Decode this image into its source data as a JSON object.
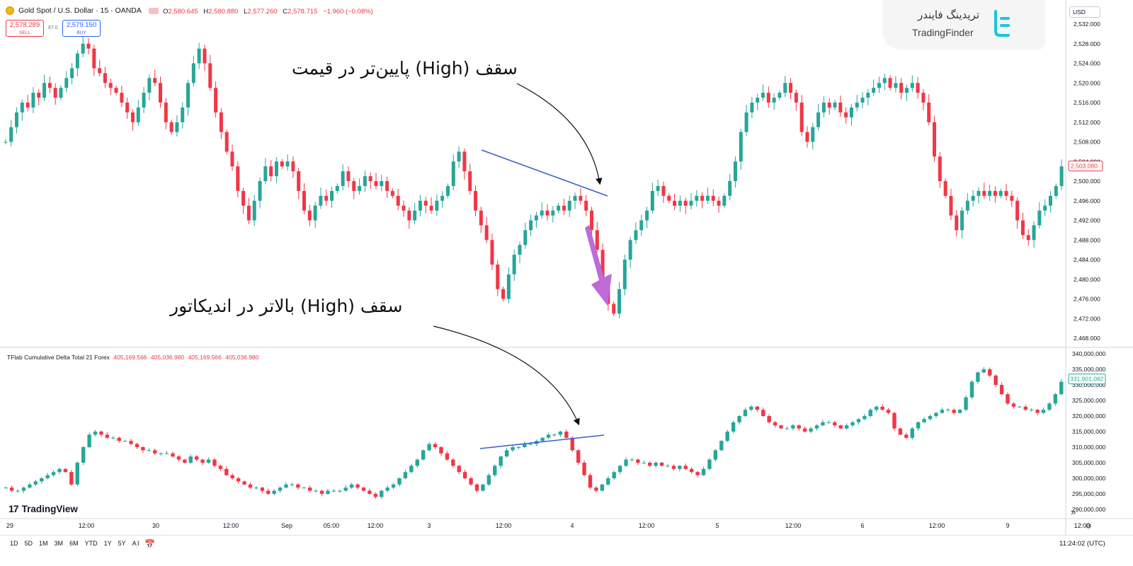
{
  "header": {
    "symbol": "Gold Spot / U.S. Dollar · 15 · OANDA",
    "ohlc": [
      {
        "k": "O",
        "v": "2,580.645"
      },
      {
        "k": "H",
        "v": "2,580.880"
      },
      {
        "k": "L",
        "v": "2,577.260"
      },
      {
        "k": "C",
        "v": "2,578.715"
      }
    ],
    "change": "−1.960 (−0.08%)"
  },
  "trade": {
    "sell_price": "2,578.289",
    "sell_label": "SELL",
    "spread": "87.0",
    "buy_price": "2,579.150",
    "buy_label": "BUY"
  },
  "currency": "USD",
  "price_axis": [
    "2,532.000",
    "2,528.000",
    "2,524.000",
    "2,520.000",
    "2,516.000",
    "2,512.000",
    "2,508.000",
    "2,504.000",
    "2,500.000",
    "2,496.000",
    "2,492.000",
    "2,488.000",
    "2,484.000",
    "2,480.000",
    "2,476.000",
    "2,472.000",
    "2,468.000"
  ],
  "last_price": "2,503.080",
  "indicator": {
    "title": "TFlab Cumulative Delta Total 21 Forex",
    "values": [
      "405,169.566",
      "405,036.980",
      "405,169.566",
      "405,036.980"
    ],
    "axis": [
      "340,000,000",
      "335,000,000",
      "330,000,000",
      "325,000,000",
      "320,000,000",
      "315,000,000",
      "310,000,000",
      "305,000,000",
      "300,000,000",
      "295,000,000",
      "290,000,000"
    ],
    "last_value": "331,901,082"
  },
  "annotations": {
    "top": "سقف (High) پایین‌تر در قیمت",
    "bottom": "سقف (High) بالاتر در اندیکاتور"
  },
  "logo": {
    "fa": "تریدینگ فایندر",
    "en": "TradingFinder"
  },
  "tv_brand": "TradingView",
  "time_axis": [
    "29",
    "12:00",
    "30",
    "12:00",
    "Sep",
    "05:00",
    "12:00",
    "3",
    "12:00",
    "4",
    "12:00",
    "5",
    "12:00",
    "6",
    "12:00",
    "9",
    "12:00"
  ],
  "ranges": [
    "1D",
    "5D",
    "1M",
    "3M",
    "6M",
    "YTD",
    "1Y",
    "5Y",
    "All"
  ],
  "clock": "11:24:02 (UTC)",
  "colors": {
    "up": "#26a69a",
    "down": "#f23645",
    "trend": "#3b5fc8",
    "arrow": "#c06ad8",
    "text": "#131722"
  },
  "chart_data": {
    "type": "candlestick",
    "price_series": {
      "name": "XAUUSD 15m",
      "ylim": [
        2466,
        2534
      ],
      "close": [
        2508,
        2511,
        2514,
        2516,
        2515,
        2518,
        2517,
        2520,
        2519,
        2517,
        2519,
        2521,
        2523,
        2526,
        2528,
        2527,
        2523,
        2522,
        2520,
        2519,
        2518,
        2516,
        2514,
        2512,
        2515,
        2518,
        2521,
        2520,
        2516,
        2512,
        2510,
        2512,
        2515,
        2520,
        2524,
        2527,
        2524,
        2519,
        2514,
        2510,
        2506,
        2503,
        2498,
        2495,
        2492,
        2496,
        2500,
        2503,
        2501,
        2504,
        2503,
        2504,
        2502,
        2498,
        2494,
        2492,
        2495,
        2497,
        2496,
        2498,
        2499,
        2502,
        2500,
        2498,
        2499,
        2501,
        2500,
        2499,
        2500,
        2498,
        2497,
        2495,
        2494,
        2492,
        2494,
        2496,
        2495,
        2494,
        2496,
        2497,
        2499,
        2504,
        2506,
        2502,
        2498,
        2494,
        2491,
        2488,
        2483,
        2478,
        2476,
        2481,
        2485,
        2487,
        2490,
        2492,
        2493,
        2494,
        2493,
        2494,
        2495,
        2494,
        2496,
        2497,
        2496,
        2494,
        2490,
        2486,
        2480,
        2475,
        2473,
        2478,
        2484,
        2488,
        2490,
        2492,
        2494,
        2498,
        2499,
        2497,
        2496,
        2495,
        2496,
        2495,
        2496,
        2497,
        2496,
        2497,
        2496,
        2495,
        2497,
        2500,
        2504,
        2510,
        2514,
        2516,
        2517,
        2518,
        2516,
        2517,
        2518,
        2520,
        2518,
        2516,
        2510,
        2508,
        2511,
        2514,
        2516,
        2515,
        2516,
        2514,
        2513,
        2515,
        2516,
        2517,
        2518,
        2519,
        2520,
        2521,
        2519,
        2520,
        2518,
        2519,
        2520,
        2518,
        2516,
        2512,
        2505,
        2500,
        2497,
        2493,
        2490,
        2494,
        2496,
        2497,
        2498,
        2497,
        2498,
        2497,
        2498,
        2497,
        2496,
        2492,
        2489,
        2488,
        2491,
        2494,
        2495,
        2497,
        2499,
        2503
      ]
    },
    "indicator_series": {
      "name": "TFlab Cumulative Delta Total 21 Forex",
      "ylim": [
        288000000,
        341000000
      ],
      "close": [
        297,
        296,
        296,
        297,
        298,
        299,
        300,
        301,
        302,
        303,
        302,
        298,
        305,
        310,
        314,
        315,
        314,
        313,
        313,
        312,
        312,
        311,
        310,
        309,
        309,
        308,
        308,
        308,
        307,
        306,
        305,
        307,
        306,
        305,
        306,
        304,
        303,
        301,
        300,
        299,
        298,
        297,
        297,
        296,
        295,
        296,
        297,
        298,
        298,
        297,
        297,
        296,
        296,
        295,
        296,
        296,
        296,
        297,
        298,
        297,
        296,
        295,
        294,
        296,
        297,
        298,
        300,
        302,
        304,
        306,
        309,
        311,
        310,
        308,
        306,
        304,
        302,
        300,
        298,
        296,
        298,
        301,
        304,
        307,
        309,
        310,
        310,
        311,
        311,
        312,
        313,
        314,
        314,
        315,
        313,
        309,
        305,
        301,
        297,
        296,
        298,
        300,
        302,
        304,
        306,
        306,
        305,
        305,
        304,
        305,
        304,
        304,
        303,
        304,
        303,
        302,
        301,
        303,
        306,
        309,
        312,
        315,
        318,
        320,
        322,
        323,
        322,
        320,
        318,
        317,
        316,
        316,
        317,
        316,
        315,
        316,
        317,
        318,
        318,
        317,
        316,
        317,
        318,
        319,
        320,
        322,
        323,
        322,
        321,
        316,
        314,
        313,
        316,
        318,
        319,
        320,
        321,
        322,
        322,
        321,
        322,
        326,
        331,
        334,
        335,
        333,
        330,
        327,
        324,
        323,
        323,
        322,
        322,
        321,
        322,
        324,
        327,
        331
      ],
      "unit": "1,000,000"
    }
  }
}
